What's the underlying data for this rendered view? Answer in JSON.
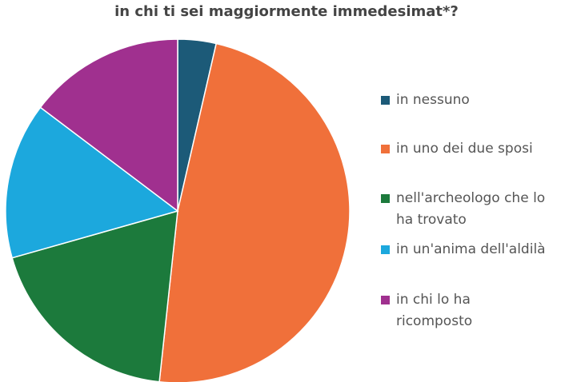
{
  "chart_data": {
    "type": "pie",
    "title": "in chi ti sei maggiormente immedesimat*?",
    "categories": [
      "in nessuno",
      "in uno dei due sposi",
      "nell'archeologo che lo ha trovato",
      "in un'anima dell'aldilà",
      "in chi lo ha ricomposto"
    ],
    "values": [
      3.6,
      48.1,
      18.9,
      14.7,
      14.7
    ],
    "colors": [
      "#1c5a78",
      "#f0703a",
      "#1c7a3c",
      "#1ca8dd",
      "#a0308f"
    ],
    "legend": "right"
  }
}
